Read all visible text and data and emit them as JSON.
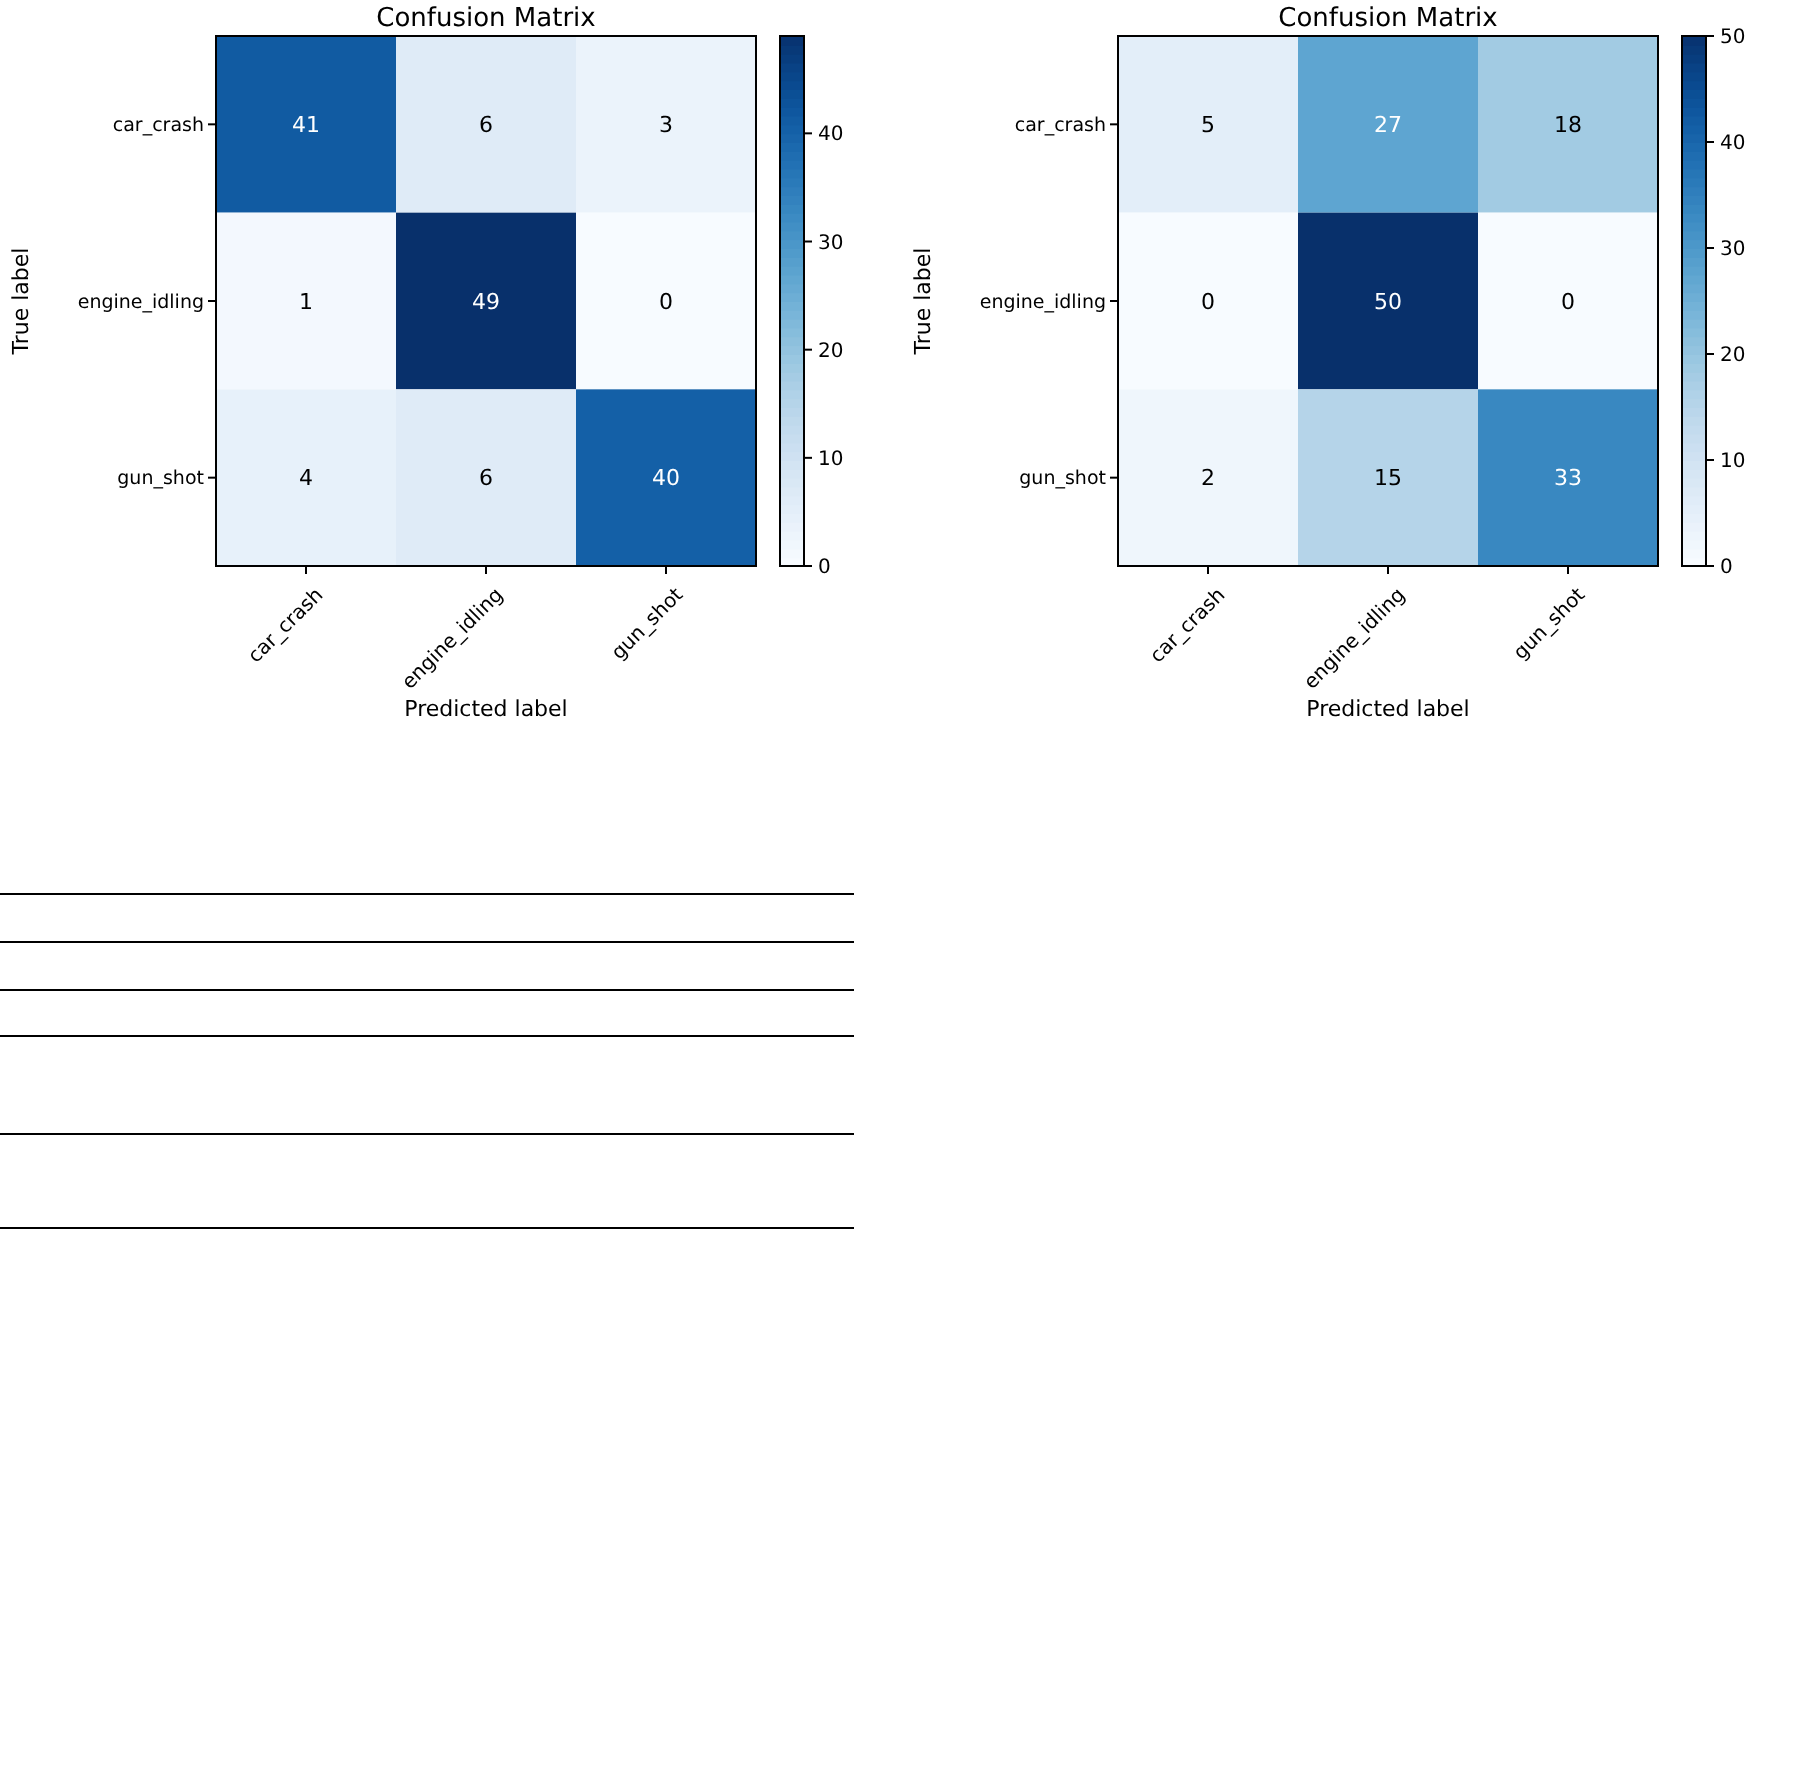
{
  "chart_data": [
    {
      "type": "heatmap",
      "title": "Confusion Matrix",
      "xlabel": "Predicted label",
      "ylabel": "True label",
      "categories": [
        "car_crash",
        "engine_idling",
        "gun_shot"
      ],
      "y_categories": [
        "car_crash",
        "engine_idling",
        "gun_shot"
      ],
      "cells": [
        [
          41,
          6,
          3
        ],
        [
          1,
          49,
          0
        ],
        [
          4,
          6,
          40
        ]
      ],
      "data_labels": true,
      "clim": [
        0,
        49
      ],
      "cticks": [
        0,
        10,
        20,
        30,
        40
      ]
    },
    {
      "type": "heatmap",
      "title": "Confusion Matrix",
      "xlabel": "Predicted label",
      "ylabel": "True label",
      "categories": [
        "car_crash",
        "engine_idling",
        "gun_shot"
      ],
      "y_categories": [
        "car_crash",
        "engine_idling",
        "gun_shot"
      ],
      "cells": [
        [
          5,
          27,
          18
        ],
        [
          0,
          50,
          0
        ],
        [
          2,
          15,
          33
        ]
      ],
      "data_labels": true,
      "clim": [
        0,
        50
      ],
      "cticks": [
        0,
        10,
        20,
        30,
        40,
        50
      ]
    }
  ]
}
